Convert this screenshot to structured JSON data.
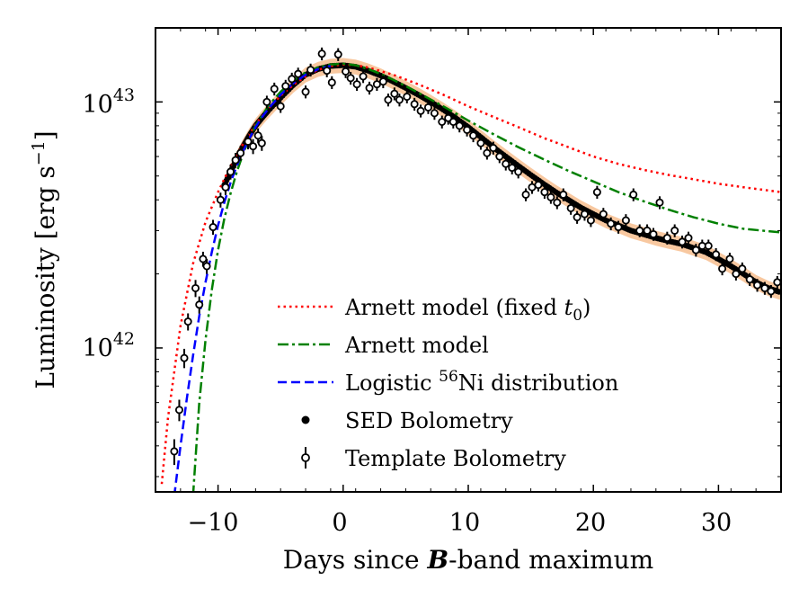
{
  "chart_data": {
    "type": "line",
    "title": "",
    "xlabel": {
      "pre": "Days since ",
      "bold_italic": "B",
      "post": "-band maximum"
    },
    "ylabel": {
      "pre": "Luminosity [erg s",
      "sup": "−1",
      "post": "]"
    },
    "xlim": [
      -15,
      35
    ],
    "ylim": [
      2.6e+41,
      2e+43
    ],
    "yscale": "log",
    "x_ticks": [
      {
        "value": -10,
        "label": "−10"
      },
      {
        "value": 0,
        "label": "0"
      },
      {
        "value": 10,
        "label": "10"
      },
      {
        "value": 20,
        "label": "20"
      },
      {
        "value": 30,
        "label": "30"
      }
    ],
    "y_ticks": [
      {
        "value": 1e+42,
        "base": "10",
        "exp": "42"
      },
      {
        "value": 1e+43,
        "base": "10",
        "exp": "43"
      }
    ],
    "legend_position": "lower-center",
    "series": [
      {
        "name": "Arnett model (fixed t0)",
        "legend_label": {
          "pre": "Arnett model (fixed ",
          "italic": "t",
          "sub": "0",
          "post": ")"
        },
        "style": "dotted",
        "color": "#ff0000",
        "x": [
          -14.5,
          -14,
          -13,
          -12,
          -11,
          -10,
          -9,
          -8,
          -7,
          -6,
          -5,
          -4,
          -3,
          -2,
          -1,
          0,
          1,
          2,
          4,
          6,
          8,
          10,
          12,
          14,
          16,
          18,
          20,
          22,
          24,
          26,
          28,
          30,
          32,
          35
        ],
        "y": [
          2.8e+41,
          5.2e+41,
          1.23e+42,
          2.2e+42,
          3.25e+42,
          4.3e+42,
          5.5e+42,
          6.75e+42,
          8.1e+42,
          9.4e+42,
          1.06e+43,
          1.17e+43,
          1.27e+43,
          1.35e+43,
          1.4e+43,
          1.42e+43,
          1.41e+43,
          1.38e+43,
          1.29e+43,
          1.18e+43,
          1.07e+43,
          9.6e+42,
          8.7e+42,
          7.9e+42,
          7.15e+42,
          6.55e+42,
          6e+42,
          5.6e+42,
          5.3e+42,
          5.05e+42,
          4.85e+42,
          4.65e+42,
          4.5e+42,
          4.3e+42
        ]
      },
      {
        "name": "Arnett model",
        "legend_label": {
          "pre": "Arnett model"
        },
        "style": "dashdot",
        "color": "#008000",
        "x": [
          -12,
          -11.5,
          -11,
          -10.5,
          -10,
          -9.5,
          -9,
          -8.5,
          -8,
          -7.5,
          -7,
          -6,
          -5,
          -4,
          -3,
          -2,
          -1,
          0,
          1,
          2,
          3,
          4,
          5,
          6,
          8,
          10,
          12,
          14,
          16,
          18,
          20,
          22,
          24,
          26,
          28,
          30,
          32,
          35
        ],
        "y": [
          2.5e+41,
          6e+41,
          1.08e+42,
          1.72e+42,
          2.5e+42,
          3.35e+42,
          4.25e+42,
          5.2e+42,
          6.15e+42,
          7.1e+42,
          8e+42,
          9.6e+42,
          1.1e+43,
          1.22e+43,
          1.32e+43,
          1.38e+43,
          1.42e+43,
          1.43e+43,
          1.41e+43,
          1.36e+43,
          1.3e+43,
          1.23e+43,
          1.16e+43,
          1.09e+43,
          9.6e+42,
          8.4e+42,
          7.4e+42,
          6.55e+42,
          5.85e+42,
          5.25e+42,
          4.75e+42,
          4.3e+42,
          3.95e+42,
          3.65e+42,
          3.4e+42,
          3.2e+42,
          3.05e+42,
          2.95e+42
        ]
      },
      {
        "name": "Logistic 56Ni distribution",
        "legend_label": {
          "pre": "Logistic ",
          "sup": "56",
          "post": "Ni distribution"
        },
        "style": "dashed",
        "color": "#0000ff",
        "x": [
          -13.5,
          -13,
          -12.5,
          -12,
          -11.5,
          -11,
          -10.5,
          -10,
          -9.5,
          -9,
          -8.5,
          -8,
          -7.5,
          -7,
          -6.5,
          -6,
          -5,
          -4,
          -3,
          -2,
          -1
        ],
        "y": [
          2.5e+41,
          4e+41,
          6.2e+41,
          9.3e+41,
          1.35e+42,
          1.85e+42,
          2.45e+42,
          3.15e+42,
          3.9e+42,
          4.7e+42,
          5.5e+42,
          6.3e+42,
          7.1e+42,
          7.9e+42,
          8.65e+42,
          9.35e+42,
          1.07e+43,
          1.19e+43,
          1.29e+43,
          1.36e+43,
          1.4e+43
        ]
      },
      {
        "name": "SED Bolometry",
        "legend_label": {
          "pre": "SED Bolometry"
        },
        "style": "filled-markers",
        "color": "#000000",
        "band_color": "#f4a460",
        "band_fraction": 0.07,
        "x": [
          -9.5,
          -9,
          -8.5,
          -8,
          -7.5,
          -7,
          -6.5,
          -6,
          -5,
          -4,
          -3,
          -2,
          -1,
          0,
          1,
          2,
          3,
          4,
          5,
          6,
          7,
          8,
          9,
          10,
          11,
          12,
          13,
          14,
          15,
          16,
          17,
          18,
          19,
          20,
          21,
          22,
          23,
          24,
          25,
          26,
          27,
          28,
          29,
          30,
          31,
          32,
          33,
          34,
          35
        ],
        "y": [
          4.6e+42,
          5.2e+42,
          5.9e+42,
          6.6e+42,
          7.3e+42,
          8e+42,
          8.6e+42,
          9.2e+42,
          1.04e+43,
          1.17e+43,
          1.29e+43,
          1.36e+43,
          1.4e+43,
          1.41e+43,
          1.39e+43,
          1.34e+43,
          1.28e+43,
          1.21e+43,
          1.14e+43,
          1.07e+43,
          1e+43,
          9.3e+42,
          8.6e+42,
          7.9e+42,
          7.2e+42,
          6.55e+42,
          6e+42,
          5.5e+42,
          5.05e+42,
          4.65e+42,
          4.3e+42,
          4e+42,
          3.72e+42,
          3.5e+42,
          3.3e+42,
          3.15e+42,
          3e+42,
          2.9e+42,
          2.8e+42,
          2.72e+42,
          2.65e+42,
          2.55e+42,
          2.45e+42,
          2.3e+42,
          2.15e+42,
          2e+42,
          1.85e+42,
          1.75e+42,
          1.68e+42
        ]
      },
      {
        "name": "Template Bolometry",
        "legend_label": {
          "pre": "Template Bolometry"
        },
        "style": "open-markers-errorbars",
        "color": "#000000",
        "points": [
          [
            -13.5,
            3.8e+41,
            0.12
          ],
          [
            -13.1,
            5.6e+41,
            0.1
          ],
          [
            -12.7,
            9.1e+41,
            0.09
          ],
          [
            -12.4,
            1.28e+42,
            0.08
          ],
          [
            -11.8,
            1.75e+42,
            0.08
          ],
          [
            -11.5,
            1.5e+42,
            0.08
          ],
          [
            -11.2,
            2.3e+42,
            0.07
          ],
          [
            -10.9,
            2.15e+42,
            0.07
          ],
          [
            -10.4,
            3.1e+42,
            0.07
          ],
          [
            -9.8,
            4e+42,
            0.07
          ],
          [
            -9.4,
            4.5e+42,
            0.07
          ],
          [
            -9.0,
            5.2e+42,
            0.07
          ],
          [
            -8.6,
            5.8e+42,
            0.07
          ],
          [
            -8.2,
            6.2e+42,
            0.07
          ],
          [
            -7.6,
            6.9e+42,
            0.07
          ],
          [
            -7.2,
            6.6e+42,
            0.07
          ],
          [
            -6.8,
            7.3e+42,
            0.07
          ],
          [
            -6.5,
            6.8e+42,
            0.07
          ],
          [
            -6.1,
            1e+43,
            0.06
          ],
          [
            -5.5,
            1.13e+43,
            0.06
          ],
          [
            -5.0,
            9.6e+42,
            0.06
          ],
          [
            -4.6,
            1.16e+43,
            0.06
          ],
          [
            -4.1,
            1.24e+43,
            0.06
          ],
          [
            -3.6,
            1.3e+43,
            0.06
          ],
          [
            -3.0,
            1.1e+43,
            0.06
          ],
          [
            -2.6,
            1.35e+43,
            0.06
          ],
          [
            -1.7,
            1.57e+43,
            0.06
          ],
          [
            -1.3,
            1.34e+43,
            0.06
          ],
          [
            -0.9,
            1.2e+43,
            0.06
          ],
          [
            -0.4,
            1.56e+43,
            0.06
          ],
          [
            0.2,
            1.33e+43,
            0.06
          ],
          [
            0.6,
            1.25e+43,
            0.06
          ],
          [
            1.1,
            1.18e+43,
            0.06
          ],
          [
            1.6,
            1.27e+43,
            0.06
          ],
          [
            2.1,
            1.14e+43,
            0.06
          ],
          [
            2.7,
            1.18e+43,
            0.06
          ],
          [
            3.2,
            1.21e+43,
            0.06
          ],
          [
            3.6,
            1.02e+43,
            0.06
          ],
          [
            4.1,
            1.08e+43,
            0.06
          ],
          [
            4.5,
            1.02e+43,
            0.06
          ],
          [
            5.1,
            1.05e+43,
            0.06
          ],
          [
            5.7,
            9.8e+42,
            0.06
          ],
          [
            6.2,
            9.2e+42,
            0.06
          ],
          [
            6.8,
            9.5e+42,
            0.06
          ],
          [
            7.3,
            9e+42,
            0.06
          ],
          [
            7.9,
            8.3e+42,
            0.06
          ],
          [
            8.4,
            8.6e+42,
            0.06
          ],
          [
            8.8,
            8.3e+42,
            0.06
          ],
          [
            9.3,
            8e+42,
            0.06
          ],
          [
            9.9,
            7.7e+42,
            0.06
          ],
          [
            10.4,
            7.3e+42,
            0.06
          ],
          [
            11.0,
            6.8e+42,
            0.06
          ],
          [
            11.5,
            6.2e+42,
            0.06
          ],
          [
            12.0,
            6.5e+42,
            0.06
          ],
          [
            12.5,
            6e+42,
            0.06
          ],
          [
            13.0,
            5.6e+42,
            0.06
          ],
          [
            13.5,
            5.4e+42,
            0.06
          ],
          [
            14.0,
            5.2e+42,
            0.06
          ],
          [
            14.6,
            4.2e+42,
            0.06
          ],
          [
            15.1,
            4.5e+42,
            0.06
          ],
          [
            15.6,
            4.6e+42,
            0.06
          ],
          [
            16.1,
            4.3e+42,
            0.06
          ],
          [
            16.6,
            4.1e+42,
            0.06
          ],
          [
            17.1,
            3.9e+42,
            0.06
          ],
          [
            17.6,
            4.2e+42,
            0.06
          ],
          [
            18.2,
            3.7e+42,
            0.06
          ],
          [
            18.7,
            3.4e+42,
            0.06
          ],
          [
            19.3,
            3.5e+42,
            0.06
          ],
          [
            19.8,
            3.3e+42,
            0.06
          ],
          [
            20.3,
            4.3e+42,
            0.06
          ],
          [
            20.8,
            3.5e+42,
            0.06
          ],
          [
            21.4,
            3.2e+42,
            0.06
          ],
          [
            22.0,
            3.1e+42,
            0.06
          ],
          [
            22.6,
            3.3e+42,
            0.06
          ],
          [
            23.2,
            4.2e+42,
            0.06
          ],
          [
            23.7,
            3e+42,
            0.06
          ],
          [
            24.3,
            3e+42,
            0.06
          ],
          [
            24.8,
            2.9e+42,
            0.06
          ],
          [
            25.3,
            3.9e+42,
            0.06
          ],
          [
            25.9,
            2.8e+42,
            0.06
          ],
          [
            26.5,
            3e+42,
            0.06
          ],
          [
            27.1,
            2.7e+42,
            0.06
          ],
          [
            27.6,
            2.8e+42,
            0.06
          ],
          [
            28.2,
            2.5e+42,
            0.06
          ],
          [
            28.7,
            2.6e+42,
            0.06
          ],
          [
            29.2,
            2.6e+42,
            0.06
          ],
          [
            29.8,
            2.4e+42,
            0.06
          ],
          [
            30.3,
            2.1e+42,
            0.06
          ],
          [
            30.9,
            2.3e+42,
            0.06
          ],
          [
            31.4,
            2e+42,
            0.06
          ],
          [
            31.9,
            2.1e+42,
            0.06
          ],
          [
            32.5,
            1.9e+42,
            0.06
          ],
          [
            33.1,
            1.8e+42,
            0.06
          ],
          [
            33.7,
            1.75e+42,
            0.06
          ],
          [
            34.2,
            1.7e+42,
            0.06
          ],
          [
            34.7,
            1.85e+42,
            0.06
          ]
        ]
      }
    ]
  }
}
